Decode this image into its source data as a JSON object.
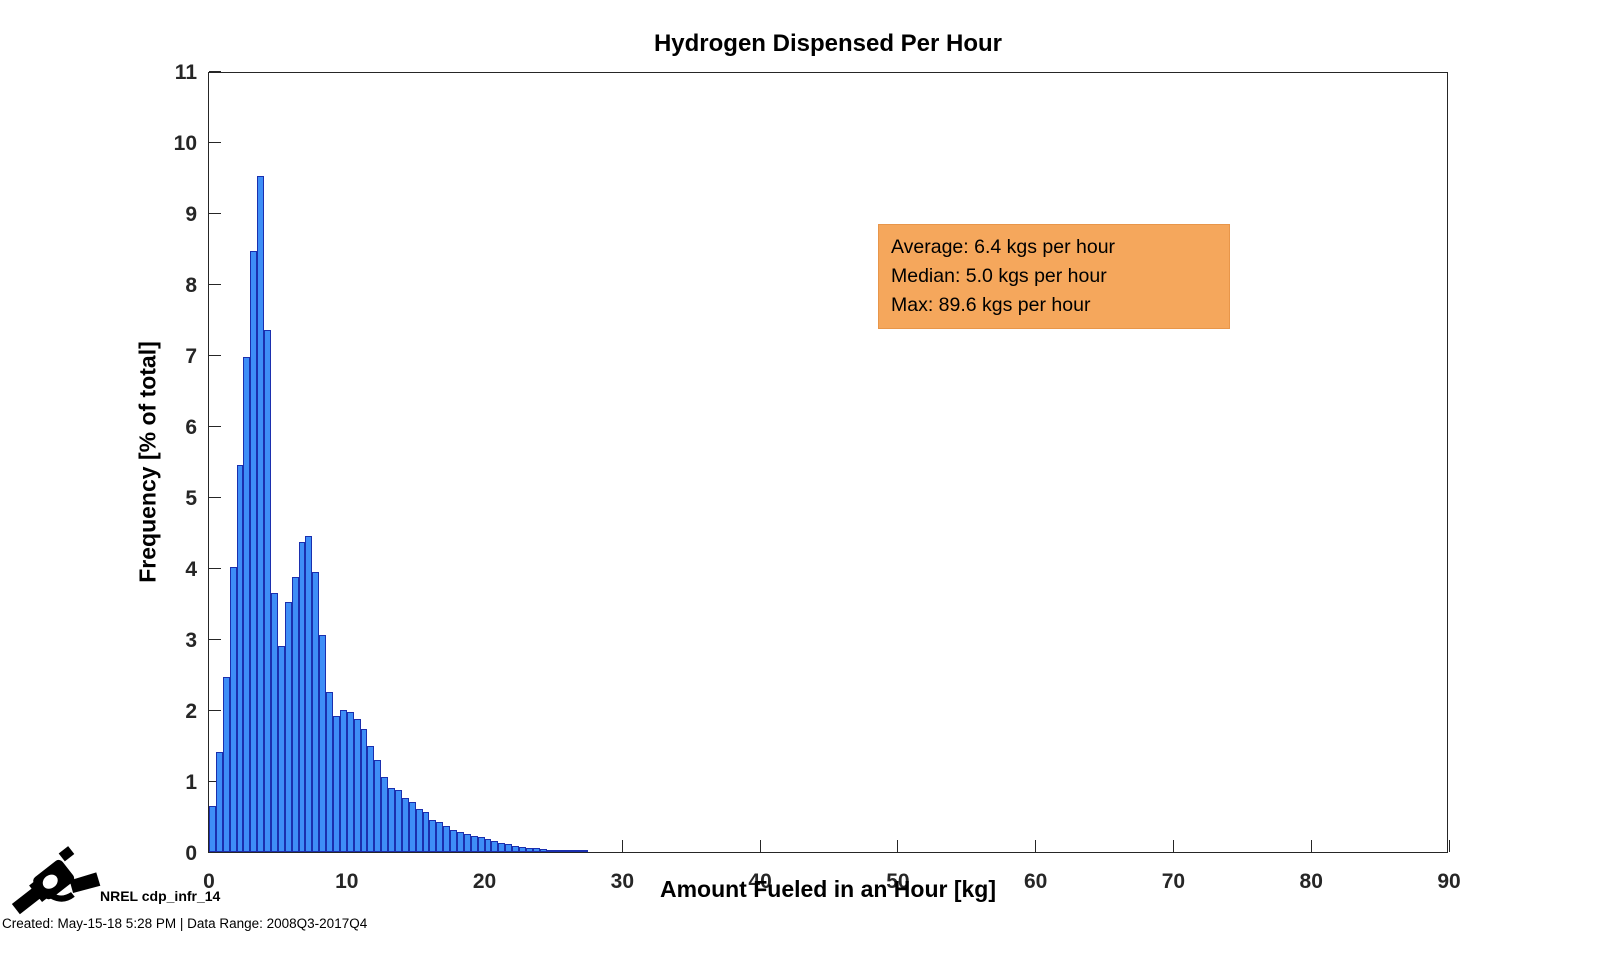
{
  "chart_data": {
    "type": "bar",
    "title": "Hydrogen Dispensed Per Hour",
    "xlabel": "Amount Fueled in an Hour [kg]",
    "ylabel": "Frequency [% of total]",
    "xlim": [
      0,
      90
    ],
    "ylim": [
      0,
      11
    ],
    "xticks": [
      0,
      10,
      20,
      30,
      40,
      50,
      60,
      70,
      80,
      90
    ],
    "yticks": [
      0,
      1,
      2,
      3,
      4,
      5,
      6,
      7,
      8,
      9,
      10,
      11
    ],
    "grid": false,
    "legend": null,
    "bin_start_kg": 0,
    "bin_width_kg": 0.5,
    "values_pct": [
      0.65,
      1.41,
      2.46,
      4.01,
      5.45,
      6.97,
      8.46,
      9.52,
      7.35,
      3.65,
      2.9,
      3.52,
      3.87,
      4.37,
      4.45,
      3.95,
      3.05,
      2.25,
      1.92,
      2.0,
      1.97,
      1.87,
      1.73,
      1.5,
      1.29,
      1.05,
      0.9,
      0.88,
      0.76,
      0.7,
      0.61,
      0.56,
      0.45,
      0.42,
      0.36,
      0.31,
      0.28,
      0.25,
      0.23,
      0.21,
      0.18,
      0.15,
      0.13,
      0.11,
      0.09,
      0.07,
      0.06,
      0.05,
      0.04,
      0.03,
      0.025,
      0.02,
      0.015,
      0.01,
      0.01
    ],
    "bar_fill_color": "#3E8EF7",
    "bar_edge_color": "#1B2FAE",
    "axis_color": "#262626"
  },
  "annotation": {
    "bg_color": "#F5A75C",
    "border_color": "#E8964A",
    "lines": {
      "average": "Average: 6.4 kgs per hour",
      "median": "Median: 5.0 kgs per hour",
      "max": "Max: 89.6 kgs per hour"
    }
  },
  "footer": {
    "icon": "fuel-nozzle-icon",
    "label": "NREL cdp_infr_14",
    "created": "Created: May-15-18  5:28 PM | Data Range: 2008Q3-2017Q4"
  }
}
